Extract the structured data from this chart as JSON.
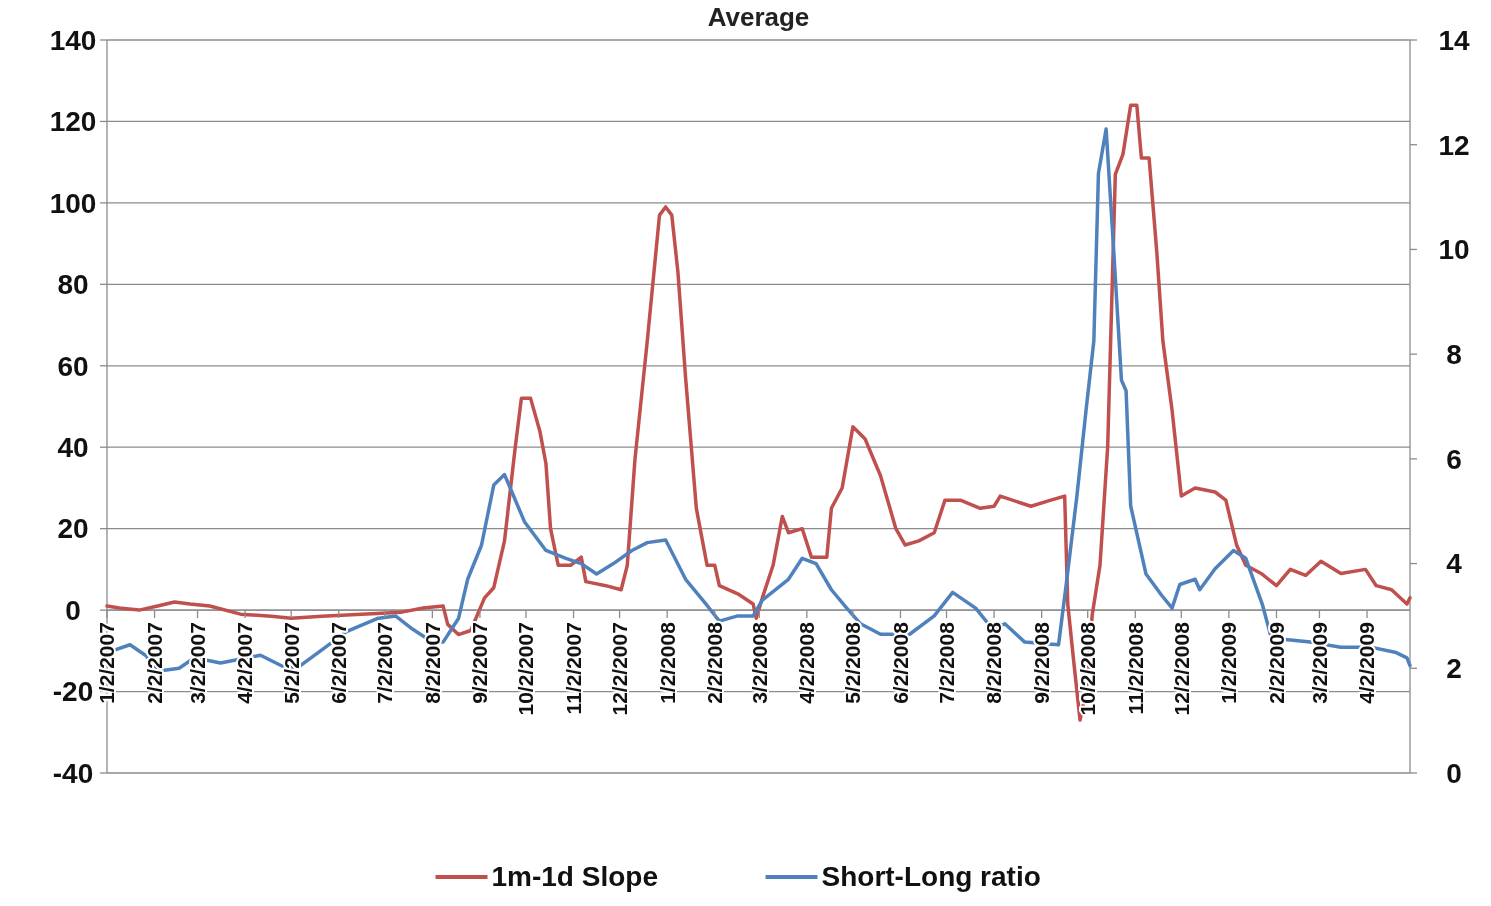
{
  "chart_data": {
    "type": "line",
    "title": "Average",
    "xlim": [
      "2007-01-02",
      "2009-04-30"
    ],
    "xticks": [
      {
        "value": "2007-01-02",
        "label": "1/2/2007"
      },
      {
        "value": "2007-02-02",
        "label": "2/2/2007"
      },
      {
        "value": "2007-03-02",
        "label": "3/2/2007"
      },
      {
        "value": "2007-04-02",
        "label": "4/2/2007"
      },
      {
        "value": "2007-05-02",
        "label": "5/2/2007"
      },
      {
        "value": "2007-06-02",
        "label": "6/2/2007"
      },
      {
        "value": "2007-07-02",
        "label": "7/2/2007"
      },
      {
        "value": "2007-08-02",
        "label": "8/2/2007"
      },
      {
        "value": "2007-09-02",
        "label": "9/2/2007"
      },
      {
        "value": "2007-10-02",
        "label": "10/2/2007"
      },
      {
        "value": "2007-11-02",
        "label": "11/2/2007"
      },
      {
        "value": "2007-12-02",
        "label": "12/2/2007"
      },
      {
        "value": "2008-01-02",
        "label": "1/2/2008"
      },
      {
        "value": "2008-02-02",
        "label": "2/2/2008"
      },
      {
        "value": "2008-03-02",
        "label": "3/2/2008"
      },
      {
        "value": "2008-04-02",
        "label": "4/2/2008"
      },
      {
        "value": "2008-05-02",
        "label": "5/2/2008"
      },
      {
        "value": "2008-06-02",
        "label": "6/2/2008"
      },
      {
        "value": "2008-07-02",
        "label": "7/2/2008"
      },
      {
        "value": "2008-08-02",
        "label": "8/2/2008"
      },
      {
        "value": "2008-09-02",
        "label": "9/2/2008"
      },
      {
        "value": "2008-10-02",
        "label": "10/2/2008"
      },
      {
        "value": "2008-11-02",
        "label": "11/2/2008"
      },
      {
        "value": "2008-12-02",
        "label": "12/2/2008"
      },
      {
        "value": "2009-01-02",
        "label": "1/2/2009"
      },
      {
        "value": "2009-02-02",
        "label": "2/2/2009"
      },
      {
        "value": "2009-03-02",
        "label": "3/2/2009"
      },
      {
        "value": "2009-04-02",
        "label": "4/2/2009"
      }
    ],
    "ylim": [
      -40,
      140
    ],
    "yticks": [
      -40,
      -20,
      0,
      20,
      40,
      60,
      80,
      100,
      120,
      140
    ],
    "y2lim": [
      0,
      14
    ],
    "y2ticks": [
      0,
      2,
      4,
      6,
      8,
      10,
      12,
      14
    ],
    "grid": "y",
    "legend": "bottom",
    "line_style": "solid",
    "series": [
      {
        "name": "1m-1d Slope",
        "color": "#c0504d",
        "x": [
          "2007-01-02",
          "2007-01-10",
          "2007-01-23",
          "2007-02-04",
          "2007-02-15",
          "2007-02-25",
          "2007-03-10",
          "2007-03-30",
          "2007-04-19",
          "2007-05-02",
          "2007-05-22",
          "2007-06-17",
          "2007-07-13",
          "2007-07-27",
          "2007-08-09",
          "2007-08-12",
          "2007-08-19",
          "2007-08-27",
          "2007-09-05",
          "2007-09-11",
          "2007-09-18",
          "2007-09-25",
          "2007-09-29",
          "2007-10-05",
          "2007-10-11",
          "2007-10-15",
          "2007-10-18",
          "2007-10-23",
          "2007-10-31",
          "2007-11-07",
          "2007-11-10",
          "2007-11-23",
          "2007-12-03",
          "2007-12-07",
          "2007-12-12",
          "2007-12-20",
          "2007-12-28",
          "2008-01-01",
          "2008-01-05",
          "2008-01-09",
          "2008-01-14",
          "2008-01-21",
          "2008-01-28",
          "2008-02-02",
          "2008-02-05",
          "2008-02-17",
          "2008-02-27",
          "2008-02-29",
          "2008-03-04",
          "2008-03-11",
          "2008-03-17",
          "2008-03-21",
          "2008-03-30",
          "2008-04-05",
          "2008-04-15",
          "2008-04-18",
          "2008-04-25",
          "2008-05-02",
          "2008-05-10",
          "2008-05-20",
          "2008-05-30",
          "2008-06-05",
          "2008-06-14",
          "2008-06-24",
          "2008-07-01",
          "2008-07-11",
          "2008-07-24",
          "2008-08-02",
          "2008-08-06",
          "2008-08-26",
          "2008-09-08",
          "2008-09-17",
          "2008-09-19",
          "2008-09-23",
          "2008-09-27",
          "2008-10-01",
          "2008-10-05",
          "2008-10-10",
          "2008-10-15",
          "2008-10-20",
          "2008-10-25",
          "2008-10-30",
          "2008-11-03",
          "2008-11-06",
          "2008-11-11",
          "2008-11-16",
          "2008-11-20",
          "2008-11-26",
          "2008-12-02",
          "2008-12-11",
          "2008-12-24",
          "2008-12-31",
          "2009-01-07",
          "2009-01-13",
          "2009-01-23",
          "2009-02-02",
          "2009-02-11",
          "2009-02-21",
          "2009-03-03",
          "2009-03-16",
          "2009-04-01",
          "2009-04-08",
          "2009-04-18",
          "2009-04-28",
          "2009-04-30"
        ],
        "values": [
          1,
          0.5,
          0,
          1,
          2,
          1.5,
          1,
          -1,
          -1.5,
          -2,
          -1.5,
          -1,
          -0.5,
          0.5,
          1,
          -3.5,
          -6,
          -5,
          3,
          5.5,
          17,
          40,
          52,
          52,
          44,
          36,
          20,
          11,
          11,
          13,
          7,
          6,
          5,
          11,
          37,
          66,
          97,
          99,
          97,
          83,
          57,
          25,
          11,
          11,
          6,
          4,
          1.5,
          -2,
          3,
          11,
          23,
          19,
          20,
          13,
          13,
          25,
          30,
          45,
          42,
          33,
          20,
          16,
          17,
          19,
          27,
          27,
          25,
          25.5,
          28,
          25.5,
          27,
          28,
          1.5,
          -13,
          -27,
          -20,
          -1,
          11,
          40,
          107,
          112,
          124,
          124,
          111,
          111,
          88,
          66,
          49,
          28,
          30,
          29,
          27,
          16,
          11,
          9,
          6,
          10,
          8.5,
          12,
          9,
          10,
          6,
          5,
          1.5,
          3
        ]
      },
      {
        "name": "Short-Long ratio",
        "color": "#4f81bd",
        "axis": "y2",
        "x": [
          "2007-01-02",
          "2007-01-17",
          "2007-01-27",
          "2007-02-05",
          "2007-02-18",
          "2007-02-28",
          "2007-03-17",
          "2007-04-12",
          "2007-04-29",
          "2007-05-08",
          "2007-05-22",
          "2007-06-07",
          "2007-06-27",
          "2007-07-09",
          "2007-07-20",
          "2007-08-02",
          "2007-08-09",
          "2007-08-19",
          "2007-08-25",
          "2007-09-03",
          "2007-09-11",
          "2007-09-18",
          "2007-10-01",
          "2007-10-15",
          "2007-10-28",
          "2007-11-07",
          "2007-11-17",
          "2007-11-28",
          "2007-12-10",
          "2007-12-20",
          "2008-01-01",
          "2008-01-14",
          "2008-01-28",
          "2008-02-05",
          "2008-02-17",
          "2008-02-27",
          "2008-03-04",
          "2008-03-21",
          "2008-03-30",
          "2008-04-08",
          "2008-04-18",
          "2008-04-28",
          "2008-05-07",
          "2008-05-20",
          "2008-06-08",
          "2008-06-24",
          "2008-07-06",
          "2008-07-21",
          "2008-08-01",
          "2008-08-09",
          "2008-08-22",
          "2008-09-13",
          "2008-09-18",
          "2008-09-25",
          "2008-10-01",
          "2008-10-06",
          "2008-10-09",
          "2008-10-14",
          "2008-10-19",
          "2008-10-24",
          "2008-10-27",
          "2008-10-30",
          "2008-11-09",
          "2008-11-19",
          "2008-11-26",
          "2008-12-01",
          "2008-12-11",
          "2008-12-14",
          "2008-12-24",
          "2009-01-05",
          "2009-01-13",
          "2009-01-24",
          "2009-01-29",
          "2009-02-08",
          "2009-02-24",
          "2009-03-16",
          "2009-04-05",
          "2009-04-21",
          "2009-04-28",
          "2009-04-30"
        ],
        "values": [
          2.3,
          2.45,
          2.25,
          1.95,
          2,
          2.2,
          2.1,
          2.25,
          2,
          2.05,
          2.35,
          2.7,
          2.95,
          3,
          2.75,
          2.5,
          2.5,
          2.95,
          3.7,
          4.35,
          5.5,
          5.7,
          4.8,
          4.25,
          4.1,
          4,
          3.8,
          4,
          4.25,
          4.4,
          4.45,
          3.7,
          3.2,
          2.9,
          3,
          3,
          3.3,
          3.7,
          4.1,
          4,
          3.5,
          3.15,
          2.85,
          2.65,
          2.65,
          3,
          3.45,
          3.15,
          2.75,
          2.85,
          2.5,
          2.45,
          3.6,
          5.3,
          6.95,
          8.25,
          11.45,
          12.3,
          9.95,
          7.5,
          7.3,
          5.1,
          3.8,
          3.4,
          3.15,
          3.6,
          3.7,
          3.5,
          3.9,
          4.25,
          4.1,
          3.2,
          2.65,
          2.55,
          2.5,
          2.4,
          2.4,
          2.3,
          2.2,
          2.05
        ]
      }
    ]
  }
}
